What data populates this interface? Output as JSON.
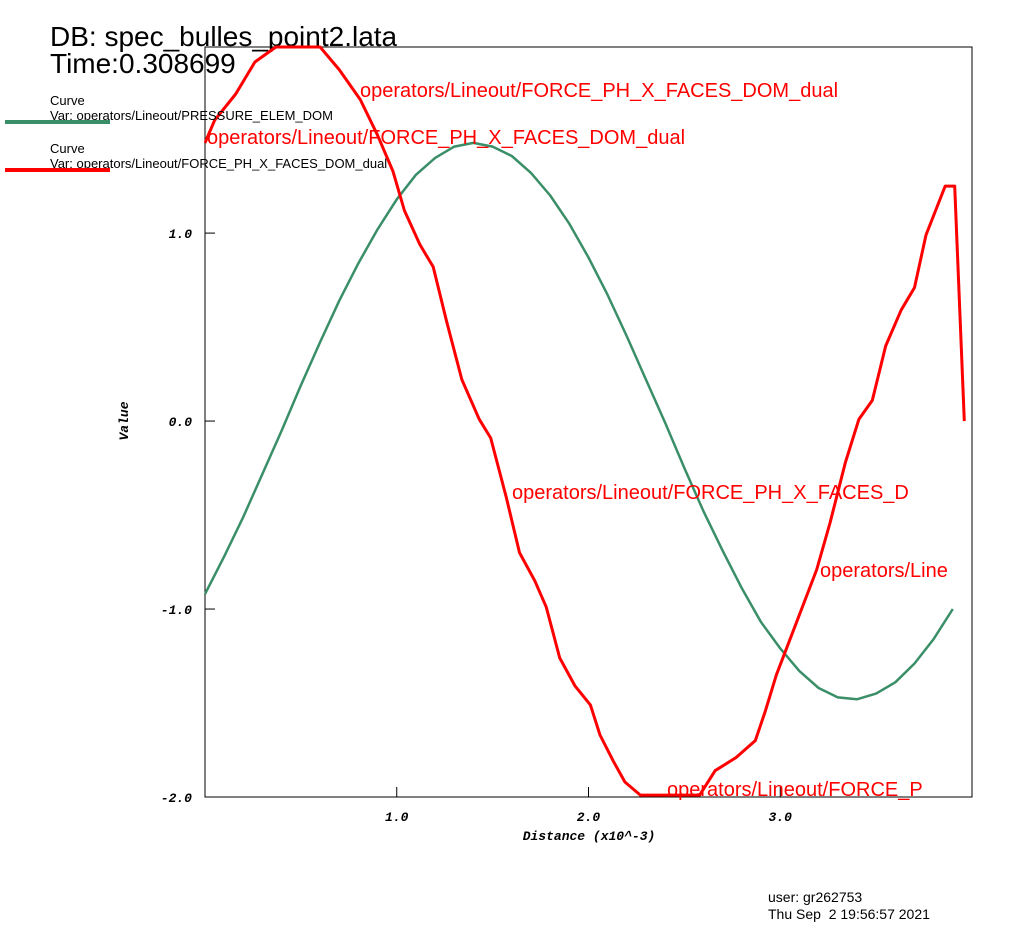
{
  "chart_data": {
    "type": "line",
    "title": "DB: spec_bulles_point2.lata",
    "subtitle": "Time:0.308699",
    "x_label": "Distance (x10^-3)",
    "y_label": "Value",
    "xlim": [
      0,
      4.0
    ],
    "ylim": [
      -2.0,
      1.99
    ],
    "xticks": [
      {
        "value": 1,
        "label": "1.0"
      },
      {
        "value": 2,
        "label": "2.0"
      },
      {
        "value": 3,
        "label": "3.0"
      }
    ],
    "yticks": [
      {
        "value": -2,
        "label": "-2.0"
      },
      {
        "value": -1,
        "label": "-1.0"
      },
      {
        "value": 0,
        "label": "0.0"
      },
      {
        "value": 1,
        "label": "1.0"
      }
    ],
    "grid": false,
    "series": [
      {
        "name": "Curve",
        "var_label": "Var: operators/Lineout/PRESSURE_ELEM_DOM",
        "color": "#3a8f68",
        "x": [
          0,
          0.1,
          0.2,
          0.3,
          0.4,
          0.5,
          0.6,
          0.7,
          0.8,
          0.9,
          1.0,
          1.1,
          1.2,
          1.3,
          1.4,
          1.5,
          1.6,
          1.7,
          1.8,
          1.9,
          2.0,
          2.1,
          2.2,
          2.3,
          2.4,
          2.5,
          2.6,
          2.7,
          2.8,
          2.9,
          3.0,
          3.1,
          3.2,
          3.3,
          3.4,
          3.5,
          3.6,
          3.7,
          3.8,
          3.9
        ],
        "values": [
          -0.92,
          -0.72,
          -0.51,
          -0.28,
          -0.05,
          0.19,
          0.42,
          0.64,
          0.84,
          1.02,
          1.18,
          1.31,
          1.4,
          1.46,
          1.48,
          1.46,
          1.41,
          1.32,
          1.2,
          1.05,
          0.87,
          0.67,
          0.45,
          0.22,
          -0.01,
          -0.25,
          -0.48,
          -0.69,
          -0.89,
          -1.07,
          -1.21,
          -1.33,
          -1.42,
          -1.47,
          -1.48,
          -1.45,
          -1.39,
          -1.29,
          -1.16,
          -1.0
        ]
      },
      {
        "name": "Curve",
        "var_label": "Var: operators/Lineout/FORCE_PH_X_FACES_DOM_dual",
        "color": "#ff0000",
        "x": [
          0,
          0.05,
          0.16,
          0.26,
          0.37,
          0.6,
          0.7,
          0.81,
          0.9,
          0.98,
          1.04,
          1.12,
          1.19,
          1.26,
          1.34,
          1.43,
          1.49,
          1.57,
          1.64,
          1.72,
          1.78,
          1.85,
          1.93,
          2.01,
          2.06,
          2.13,
          2.19,
          2.27,
          2.58,
          2.66,
          2.77,
          2.87,
          2.92,
          2.98,
          3.07,
          3.13,
          3.19,
          3.26,
          3.34,
          3.41,
          3.48,
          3.55,
          3.63,
          3.7,
          3.76,
          3.86,
          3.91,
          3.96
        ],
        "values": [
          1.48,
          1.6,
          1.74,
          1.91,
          1.99,
          1.99,
          1.87,
          1.71,
          1.52,
          1.33,
          1.12,
          0.94,
          0.82,
          0.53,
          0.22,
          0.01,
          -0.09,
          -0.4,
          -0.7,
          -0.85,
          -0.99,
          -1.26,
          -1.41,
          -1.51,
          -1.67,
          -1.81,
          -1.92,
          -1.99,
          -1.99,
          -1.86,
          -1.79,
          -1.7,
          -1.55,
          -1.35,
          -1.11,
          -0.95,
          -0.79,
          -0.54,
          -0.22,
          0.01,
          0.11,
          0.4,
          0.59,
          0.71,
          0.99,
          1.25,
          1.25,
          0
        ]
      }
    ],
    "annotations": [
      "operators/Lineout/FORCE_PH_X_FACES_DOM_dual",
      "operators/Lineout/FORCE_PH_X_FACES_DOM_dual",
      "operators/Lineout/FORCE_PH_X_FACES_D",
      "operators/Line",
      "operators/Lineout/FORCE_P"
    ],
    "user": "user: gr262753",
    "date": "Thu Sep  2 19:56:57 2021"
  }
}
